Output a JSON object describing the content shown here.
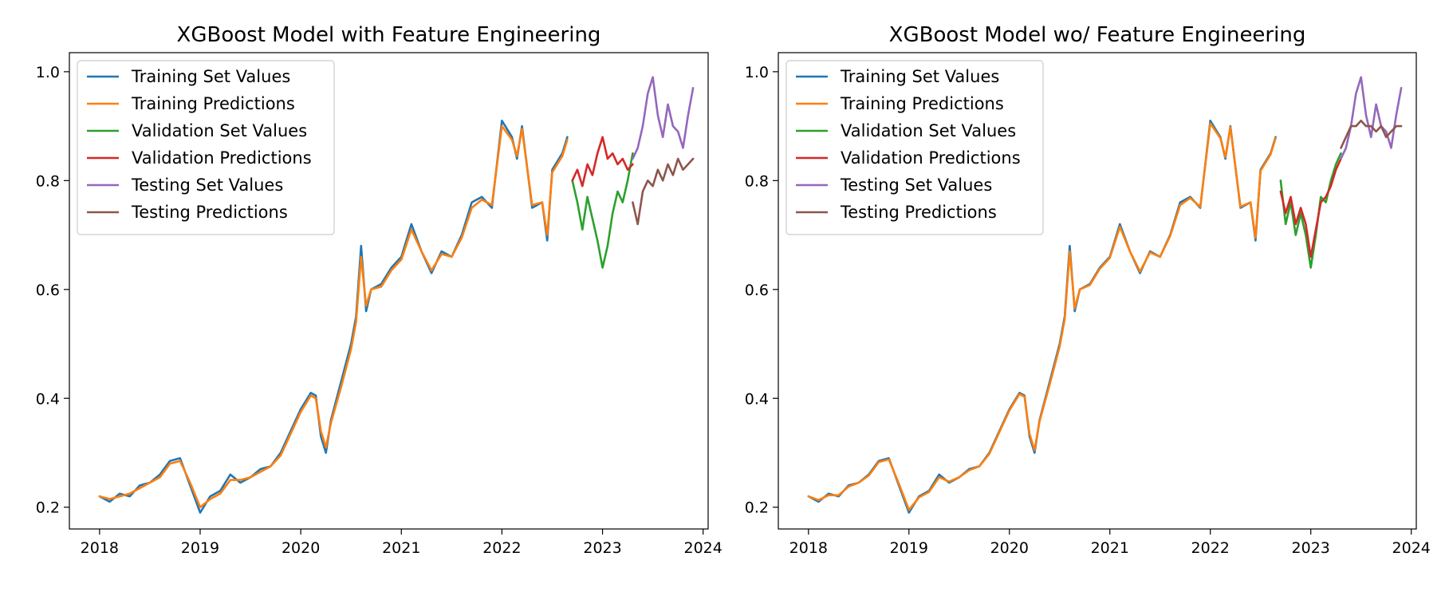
{
  "chart_data": [
    {
      "type": "line",
      "title": "XGBoost Model with Feature Engineering",
      "xlabel": "",
      "ylabel": "",
      "xlim": [
        2017.7,
        2024.05
      ],
      "ylim": [
        0.16,
        1.035
      ],
      "xticks": [
        "2018",
        "2019",
        "2020",
        "2021",
        "2022",
        "2023",
        "2024"
      ],
      "yticks": [
        "0.2",
        "0.4",
        "0.6",
        "0.8",
        "1.0"
      ],
      "grid": false,
      "legend_position": "upper-left",
      "series": [
        {
          "name": "Training Set Values",
          "color": "#1f77b4",
          "x": [
            2018.0,
            2018.1,
            2018.2,
            2018.3,
            2018.4,
            2018.5,
            2018.6,
            2018.7,
            2018.8,
            2018.9,
            2019.0,
            2019.1,
            2019.2,
            2019.3,
            2019.4,
            2019.5,
            2019.6,
            2019.7,
            2019.8,
            2019.9,
            2020.0,
            2020.1,
            2020.15,
            2020.2,
            2020.25,
            2020.3,
            2020.4,
            2020.5,
            2020.55,
            2020.6,
            2020.65,
            2020.7,
            2020.8,
            2020.9,
            2021.0,
            2021.1,
            2021.2,
            2021.3,
            2021.4,
            2021.5,
            2021.6,
            2021.7,
            2021.8,
            2021.9,
            2022.0,
            2022.1,
            2022.15,
            2022.2,
            2022.3,
            2022.4,
            2022.45,
            2022.5,
            2022.6,
            2022.65
          ],
          "y": [
            0.22,
            0.21,
            0.225,
            0.22,
            0.24,
            0.245,
            0.26,
            0.285,
            0.29,
            0.24,
            0.19,
            0.22,
            0.23,
            0.26,
            0.245,
            0.255,
            0.27,
            0.275,
            0.3,
            0.34,
            0.38,
            0.41,
            0.405,
            0.33,
            0.3,
            0.36,
            0.43,
            0.5,
            0.55,
            0.68,
            0.56,
            0.6,
            0.61,
            0.64,
            0.66,
            0.72,
            0.67,
            0.63,
            0.67,
            0.66,
            0.7,
            0.76,
            0.77,
            0.75,
            0.91,
            0.88,
            0.84,
            0.9,
            0.75,
            0.76,
            0.69,
            0.82,
            0.85,
            0.88
          ]
        },
        {
          "name": "Training Predictions",
          "color": "#ff7f0e",
          "x": [
            2018.0,
            2018.1,
            2018.2,
            2018.3,
            2018.4,
            2018.5,
            2018.6,
            2018.7,
            2018.8,
            2018.9,
            2019.0,
            2019.1,
            2019.2,
            2019.3,
            2019.4,
            2019.5,
            2019.6,
            2019.7,
            2019.8,
            2019.9,
            2020.0,
            2020.1,
            2020.15,
            2020.2,
            2020.25,
            2020.3,
            2020.4,
            2020.5,
            2020.55,
            2020.6,
            2020.65,
            2020.7,
            2020.8,
            2020.9,
            2021.0,
            2021.1,
            2021.2,
            2021.3,
            2021.4,
            2021.5,
            2021.6,
            2021.7,
            2021.8,
            2021.9,
            2022.0,
            2022.1,
            2022.15,
            2022.2,
            2022.3,
            2022.4,
            2022.45,
            2022.5,
            2022.6,
            2022.65
          ],
          "y": [
            0.22,
            0.215,
            0.22,
            0.225,
            0.235,
            0.245,
            0.255,
            0.28,
            0.285,
            0.245,
            0.2,
            0.215,
            0.225,
            0.25,
            0.25,
            0.255,
            0.265,
            0.275,
            0.295,
            0.335,
            0.375,
            0.405,
            0.4,
            0.34,
            0.31,
            0.355,
            0.42,
            0.49,
            0.54,
            0.66,
            0.57,
            0.6,
            0.605,
            0.635,
            0.655,
            0.71,
            0.67,
            0.635,
            0.665,
            0.66,
            0.695,
            0.75,
            0.765,
            0.755,
            0.9,
            0.875,
            0.845,
            0.895,
            0.755,
            0.76,
            0.7,
            0.815,
            0.845,
            0.875
          ]
        },
        {
          "name": "Validation Set Values",
          "color": "#2ca02c",
          "x": [
            2022.7,
            2022.75,
            2022.8,
            2022.85,
            2022.9,
            2022.95,
            2023.0,
            2023.05,
            2023.1,
            2023.15,
            2023.2,
            2023.25,
            2023.3
          ],
          "y": [
            0.8,
            0.76,
            0.71,
            0.77,
            0.73,
            0.69,
            0.64,
            0.68,
            0.74,
            0.78,
            0.76,
            0.8,
            0.85
          ]
        },
        {
          "name": "Validation Predictions",
          "color": "#d62728",
          "x": [
            2022.7,
            2022.75,
            2022.8,
            2022.85,
            2022.9,
            2022.95,
            2023.0,
            2023.05,
            2023.1,
            2023.15,
            2023.2,
            2023.25,
            2023.3
          ],
          "y": [
            0.8,
            0.82,
            0.79,
            0.83,
            0.81,
            0.85,
            0.88,
            0.84,
            0.85,
            0.83,
            0.84,
            0.82,
            0.83
          ]
        },
        {
          "name": "Testing Set Values",
          "color": "#9467bd",
          "x": [
            2023.3,
            2023.35,
            2023.4,
            2023.45,
            2023.5,
            2023.55,
            2023.6,
            2023.65,
            2023.7,
            2023.75,
            2023.8,
            2023.85,
            2023.9
          ],
          "y": [
            0.84,
            0.86,
            0.9,
            0.96,
            0.99,
            0.92,
            0.88,
            0.94,
            0.9,
            0.89,
            0.86,
            0.92,
            0.97
          ]
        },
        {
          "name": "Testing Predictions",
          "color": "#8c564b",
          "x": [
            2023.3,
            2023.35,
            2023.4,
            2023.45,
            2023.5,
            2023.55,
            2023.6,
            2023.65,
            2023.7,
            2023.75,
            2023.8,
            2023.85,
            2023.9
          ],
          "y": [
            0.76,
            0.72,
            0.78,
            0.8,
            0.79,
            0.82,
            0.8,
            0.83,
            0.81,
            0.84,
            0.82,
            0.83,
            0.84
          ]
        }
      ]
    },
    {
      "type": "line",
      "title": "XGBoost Model wo/ Feature Engineering",
      "xlabel": "",
      "ylabel": "",
      "xlim": [
        2017.7,
        2024.05
      ],
      "ylim": [
        0.16,
        1.035
      ],
      "xticks": [
        "2018",
        "2019",
        "2020",
        "2021",
        "2022",
        "2023",
        "2024"
      ],
      "yticks": [
        "0.2",
        "0.4",
        "0.6",
        "0.8",
        "1.0"
      ],
      "grid": false,
      "legend_position": "upper-left",
      "series": [
        {
          "name": "Training Set Values",
          "color": "#1f77b4",
          "x": [
            2018.0,
            2018.1,
            2018.2,
            2018.3,
            2018.4,
            2018.5,
            2018.6,
            2018.7,
            2018.8,
            2018.9,
            2019.0,
            2019.1,
            2019.2,
            2019.3,
            2019.4,
            2019.5,
            2019.6,
            2019.7,
            2019.8,
            2019.9,
            2020.0,
            2020.1,
            2020.15,
            2020.2,
            2020.25,
            2020.3,
            2020.4,
            2020.5,
            2020.55,
            2020.6,
            2020.65,
            2020.7,
            2020.8,
            2020.9,
            2021.0,
            2021.1,
            2021.2,
            2021.3,
            2021.4,
            2021.5,
            2021.6,
            2021.7,
            2021.8,
            2021.9,
            2022.0,
            2022.1,
            2022.15,
            2022.2,
            2022.3,
            2022.4,
            2022.45,
            2022.5,
            2022.6,
            2022.65
          ],
          "y": [
            0.22,
            0.21,
            0.225,
            0.22,
            0.24,
            0.245,
            0.26,
            0.285,
            0.29,
            0.24,
            0.19,
            0.22,
            0.23,
            0.26,
            0.245,
            0.255,
            0.27,
            0.275,
            0.3,
            0.34,
            0.38,
            0.41,
            0.405,
            0.33,
            0.3,
            0.36,
            0.43,
            0.5,
            0.55,
            0.68,
            0.56,
            0.6,
            0.61,
            0.64,
            0.66,
            0.72,
            0.67,
            0.63,
            0.67,
            0.66,
            0.7,
            0.76,
            0.77,
            0.75,
            0.91,
            0.88,
            0.84,
            0.9,
            0.75,
            0.76,
            0.69,
            0.82,
            0.85,
            0.88
          ]
        },
        {
          "name": "Training Predictions",
          "color": "#ff7f0e",
          "x": [
            2018.0,
            2018.1,
            2018.2,
            2018.3,
            2018.4,
            2018.5,
            2018.6,
            2018.7,
            2018.8,
            2018.9,
            2019.0,
            2019.1,
            2019.2,
            2019.3,
            2019.4,
            2019.5,
            2019.6,
            2019.7,
            2019.8,
            2019.9,
            2020.0,
            2020.1,
            2020.15,
            2020.2,
            2020.25,
            2020.3,
            2020.4,
            2020.5,
            2020.55,
            2020.6,
            2020.65,
            2020.7,
            2020.8,
            2020.9,
            2021.0,
            2021.1,
            2021.2,
            2021.3,
            2021.4,
            2021.5,
            2021.6,
            2021.7,
            2021.8,
            2021.9,
            2022.0,
            2022.1,
            2022.15,
            2022.2,
            2022.3,
            2022.4,
            2022.45,
            2022.5,
            2022.6,
            2022.65
          ],
          "y": [
            0.22,
            0.213,
            0.222,
            0.222,
            0.238,
            0.245,
            0.258,
            0.283,
            0.288,
            0.243,
            0.195,
            0.218,
            0.228,
            0.255,
            0.247,
            0.255,
            0.268,
            0.275,
            0.298,
            0.338,
            0.378,
            0.408,
            0.403,
            0.335,
            0.305,
            0.358,
            0.425,
            0.495,
            0.545,
            0.67,
            0.565,
            0.6,
            0.608,
            0.638,
            0.658,
            0.715,
            0.67,
            0.633,
            0.668,
            0.66,
            0.698,
            0.755,
            0.768,
            0.752,
            0.905,
            0.878,
            0.843,
            0.898,
            0.752,
            0.76,
            0.695,
            0.818,
            0.848,
            0.878
          ]
        },
        {
          "name": "Validation Set Values",
          "color": "#2ca02c",
          "x": [
            2022.7,
            2022.75,
            2022.8,
            2022.85,
            2022.9,
            2022.95,
            2023.0,
            2023.05,
            2023.1,
            2023.15,
            2023.2,
            2023.25,
            2023.3
          ],
          "y": [
            0.8,
            0.72,
            0.76,
            0.7,
            0.74,
            0.7,
            0.64,
            0.7,
            0.77,
            0.76,
            0.8,
            0.83,
            0.85
          ]
        },
        {
          "name": "Validation Predictions",
          "color": "#d62728",
          "x": [
            2022.7,
            2022.75,
            2022.8,
            2022.85,
            2022.9,
            2022.95,
            2023.0,
            2023.05,
            2023.1,
            2023.15,
            2023.2,
            2023.25,
            2023.3
          ],
          "y": [
            0.78,
            0.74,
            0.77,
            0.72,
            0.75,
            0.72,
            0.66,
            0.71,
            0.76,
            0.77,
            0.79,
            0.82,
            0.84
          ]
        },
        {
          "name": "Testing Set Values",
          "color": "#9467bd",
          "x": [
            2023.3,
            2023.35,
            2023.4,
            2023.45,
            2023.5,
            2023.55,
            2023.6,
            2023.65,
            2023.7,
            2023.75,
            2023.8,
            2023.85,
            2023.9
          ],
          "y": [
            0.84,
            0.86,
            0.9,
            0.96,
            0.99,
            0.92,
            0.88,
            0.94,
            0.9,
            0.89,
            0.86,
            0.92,
            0.97
          ]
        },
        {
          "name": "Testing Predictions",
          "color": "#8c564b",
          "x": [
            2023.3,
            2023.35,
            2023.4,
            2023.45,
            2023.5,
            2023.55,
            2023.6,
            2023.65,
            2023.7,
            2023.75,
            2023.8,
            2023.85,
            2023.9
          ],
          "y": [
            0.86,
            0.88,
            0.9,
            0.9,
            0.91,
            0.9,
            0.9,
            0.89,
            0.9,
            0.88,
            0.89,
            0.9,
            0.9
          ]
        }
      ]
    }
  ]
}
